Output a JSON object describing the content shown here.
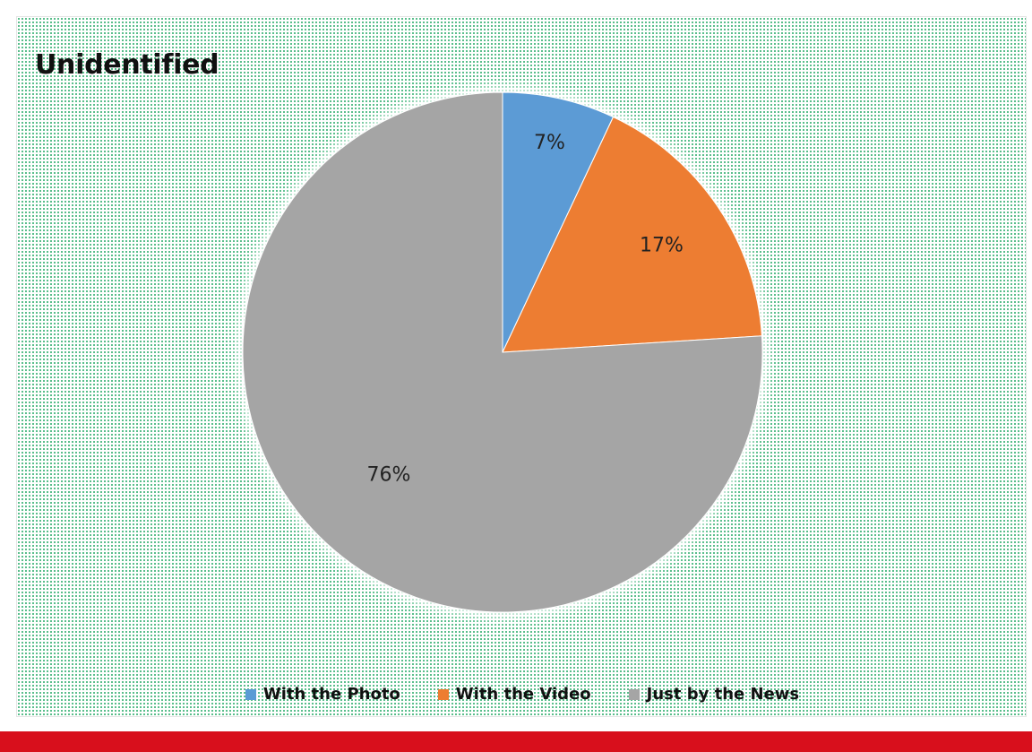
{
  "chart_data": {
    "type": "pie",
    "title": "Unidentified",
    "categories": [
      "With the Photo",
      "With the Video",
      "Just by the News"
    ],
    "values": [
      7,
      17,
      76
    ],
    "labels": [
      "7%",
      "17%",
      "76%"
    ],
    "colors": [
      "#5b9bd5",
      "#ed7d31",
      "#a5a5a5"
    ],
    "legend_position": "bottom",
    "start_angle": "12 o'clock, clockwise"
  },
  "legend": [
    {
      "label": "With the Photo",
      "color": "#5b9bd5"
    },
    {
      "label": "With the Video",
      "color": "#ed7d31"
    },
    {
      "label": "Just by the News",
      "color": "#a5a5a5"
    }
  ],
  "colors": {
    "bottom_bar": "#d80f1c",
    "dot_pattern": "#2fae6e"
  }
}
